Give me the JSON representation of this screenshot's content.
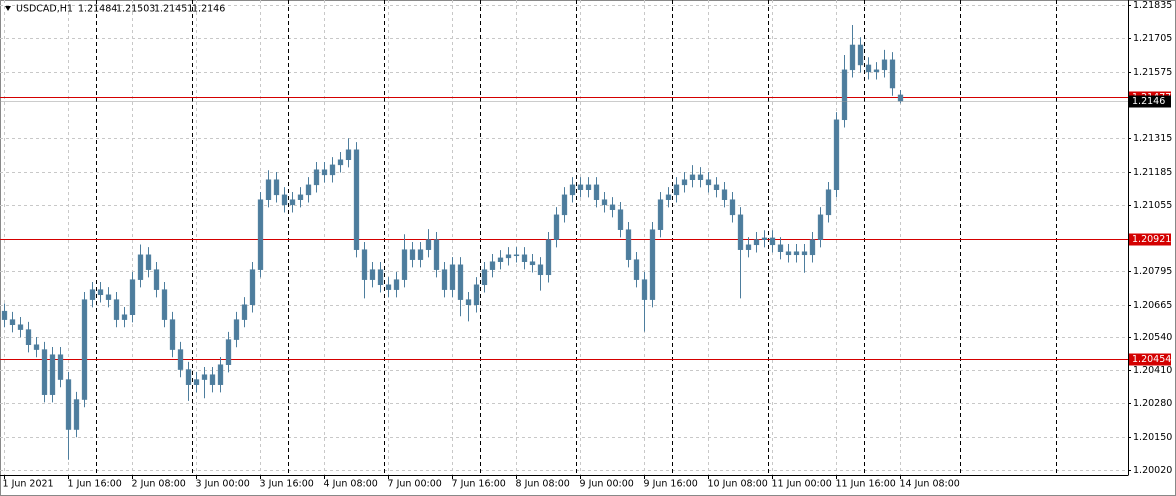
{
  "chart_data": {
    "type": "candlestick",
    "symbol": "USDCAD,H1",
    "quote": {
      "open": 1.21484,
      "high": 1.21503,
      "low": 1.21451,
      "close": 1.2146
    },
    "color": "#4d7d9d",
    "grid": true,
    "level_color": "#d40000",
    "levels": [
      1.21477,
      1.20921,
      1.20454
    ],
    "xlim": [
      -0.5,
      140.5
    ],
    "xticks": [
      {
        "value": 0,
        "label": "1 Jun 2021"
      },
      {
        "value": 8,
        "label": "1 Jun 16:00"
      },
      {
        "value": 16,
        "label": "2 Jun 08:00"
      },
      {
        "value": 24,
        "label": "3 Jun 00:00"
      },
      {
        "value": 32,
        "label": "3 Jun 16:00"
      },
      {
        "value": 40,
        "label": "4 Jun 08:00"
      },
      {
        "value": 48,
        "label": "7 Jun 00:00"
      },
      {
        "value": 56,
        "label": "7 Jun 16:00"
      },
      {
        "value": 64,
        "label": "8 Jun 08:00"
      },
      {
        "value": 72,
        "label": "9 Jun 00:00"
      },
      {
        "value": 80,
        "label": "9 Jun 16:00"
      },
      {
        "value": 88,
        "label": "10 Jun 08:00"
      },
      {
        "value": 96,
        "label": "11 Jun 00:00"
      },
      {
        "value": 104,
        "label": "11 Jun 16:00"
      },
      {
        "value": 112,
        "label": "14 Jun 08:00"
      }
    ],
    "ylim": [
      1.2002,
      1.21835
    ],
    "yticks": [
      1.21835,
      1.21705,
      1.21575,
      1.21315,
      1.21185,
      1.21055,
      1.20795,
      1.20665,
      {
        "value": 1.2054,
        "label": "1.20540"
      },
      {
        "value": 1.2041,
        "label": "1.20410"
      },
      {
        "value": 1.2028,
        "label": "1.20280"
      },
      {
        "value": 1.2015,
        "label": "1.20150"
      },
      {
        "value": 1.2002,
        "label": "1.20020"
      }
    ],
    "open": [
      1.2064,
      1.20607,
      1.20587,
      1.20568,
      1.20509,
      1.2049,
      1.20314,
      1.2047,
      1.20373,
      1.20178,
      1.20295,
      1.20685,
      1.20724,
      1.20704,
      1.20685,
      1.20607,
      1.20626,
      1.20763,
      1.2086,
      1.20802,
      1.20724,
      1.20607,
      1.2049,
      1.20412,
      1.20353,
      1.20373,
      1.20392,
      1.20353,
      1.20431,
      1.20529,
      1.20607,
      1.20665,
      1.20802,
      1.21075,
      1.21153,
      1.21094,
      1.21055,
      1.21075,
      1.21094,
      1.21133,
      1.21192,
      1.21172,
      1.21211,
      1.21231,
      1.2127,
      1.2088,
      1.20763,
      1.20802,
      1.20743,
      1.20724,
      1.20763,
      1.2088,
      1.20841,
      1.2088,
      1.20919,
      1.20802,
      1.20724,
      1.20821,
      1.20685,
      1.20665,
      1.20743,
      1.20802,
      1.20833,
      1.20848,
      1.2086,
      1.2086,
      1.20833,
      1.20821,
      1.20782,
      1.20919,
      1.21016,
      1.21094,
      1.21133,
      1.21114,
      1.21133,
      1.21075,
      1.21055,
      1.21036,
      1.20958,
      1.20841,
      1.20763,
      1.20685,
      1.20958,
      1.21075,
      1.21094,
      1.21133,
      1.21153,
      1.21172,
      1.21153,
      1.21133,
      1.21114,
      1.21075,
      1.21016,
      1.2088,
      1.20899,
      1.20919,
      1.20926,
      1.20899,
      1.20872,
      1.2086,
      1.20872,
      1.2086,
      1.20919,
      1.21016,
      1.21114,
      1.21387,
      1.21582,
      1.21679,
      1.21601,
      1.21574,
      1.21582,
      1.21621,
      1.21484
    ],
    "high": [
      1.2067,
      1.20637,
      1.20617,
      1.20598,
      1.20539,
      1.2052,
      1.205,
      1.205,
      1.20403,
      1.20325,
      1.20715,
      1.20754,
      1.20754,
      1.20734,
      1.20715,
      1.20656,
      1.20793,
      1.209,
      1.2089,
      1.20832,
      1.20754,
      1.20637,
      1.2052,
      1.20442,
      1.20403,
      1.20422,
      1.20422,
      1.20461,
      1.20559,
      1.20637,
      1.20695,
      1.20832,
      1.21105,
      1.2119,
      1.21183,
      1.21124,
      1.21105,
      1.21124,
      1.21163,
      1.21222,
      1.21222,
      1.21241,
      1.21261,
      1.21315,
      1.213,
      1.2091,
      1.20832,
      1.20832,
      1.20773,
      1.20793,
      1.2094,
      1.2091,
      1.2091,
      1.2096,
      1.20949,
      1.20832,
      1.20851,
      1.20851,
      1.20715,
      1.20773,
      1.20832,
      1.20863,
      1.20878,
      1.2089,
      1.2089,
      1.2089,
      1.20863,
      1.20851,
      1.20949,
      1.21046,
      1.21124,
      1.21163,
      1.21163,
      1.21163,
      1.21163,
      1.21105,
      1.21085,
      1.21066,
      1.20988,
      1.20871,
      1.20793,
      1.20988,
      1.21105,
      1.21124,
      1.21163,
      1.21183,
      1.2121,
      1.21202,
      1.21183,
      1.21163,
      1.21144,
      1.21105,
      1.21046,
      1.20929,
      1.20949,
      1.20956,
      1.20956,
      1.20929,
      1.20902,
      1.20902,
      1.20902,
      1.20949,
      1.21046,
      1.21144,
      1.21417,
      1.2164,
      1.21757,
      1.21709,
      1.21631,
      1.21612,
      1.2166,
      1.21651,
      1.21503
    ],
    "low": [
      1.20577,
      1.20557,
      1.20538,
      1.20479,
      1.2046,
      1.20284,
      1.20284,
      1.20343,
      1.2006,
      1.20148,
      1.20265,
      1.20655,
      1.20674,
      1.20655,
      1.20577,
      1.20577,
      1.20596,
      1.20733,
      1.20772,
      1.20694,
      1.20577,
      1.2046,
      1.20382,
      1.2029,
      1.20323,
      1.203,
      1.20323,
      1.20323,
      1.20401,
      1.20499,
      1.20577,
      1.20635,
      1.20772,
      1.21045,
      1.21064,
      1.21025,
      1.21025,
      1.21045,
      1.21064,
      1.21103,
      1.21142,
      1.21142,
      1.21181,
      1.21201,
      1.2085,
      1.2069,
      1.20733,
      1.20713,
      1.20694,
      1.20694,
      1.20733,
      1.20811,
      1.20811,
      1.2085,
      1.20772,
      1.20694,
      1.20694,
      1.2062,
      1.206,
      1.20635,
      1.20713,
      1.20772,
      1.20803,
      1.20818,
      1.2083,
      1.20803,
      1.20791,
      1.2072,
      1.20752,
      1.20889,
      1.20986,
      1.21064,
      1.21084,
      1.21084,
      1.21045,
      1.21025,
      1.21006,
      1.20928,
      1.20811,
      1.20733,
      1.2056,
      1.20655,
      1.20928,
      1.21045,
      1.21064,
      1.21103,
      1.21123,
      1.21123,
      1.21103,
      1.21084,
      1.21045,
      1.20986,
      1.2069,
      1.2085,
      1.20869,
      1.20889,
      1.20869,
      1.20842,
      1.2083,
      1.2083,
      1.2079,
      1.2083,
      1.20889,
      1.20986,
      1.21084,
      1.21357,
      1.21552,
      1.21571,
      1.21544,
      1.21544,
      1.21552,
      1.21481,
      1.21451
    ],
    "close": [
      1.20607,
      1.20587,
      1.20568,
      1.20509,
      1.2049,
      1.20314,
      1.2047,
      1.20373,
      1.20178,
      1.20295,
      1.20685,
      1.20724,
      1.20704,
      1.20685,
      1.20607,
      1.20626,
      1.20763,
      1.2086,
      1.20802,
      1.20724,
      1.20607,
      1.2049,
      1.20412,
      1.20353,
      1.20373,
      1.20392,
      1.20353,
      1.20431,
      1.20529,
      1.20607,
      1.20665,
      1.20802,
      1.21075,
      1.21153,
      1.21094,
      1.21055,
      1.21075,
      1.21094,
      1.21133,
      1.21192,
      1.21172,
      1.21211,
      1.21231,
      1.2127,
      1.2088,
      1.20763,
      1.20802,
      1.20743,
      1.20724,
      1.20763,
      1.2088,
      1.20841,
      1.2088,
      1.20919,
      1.20802,
      1.20724,
      1.20821,
      1.20685,
      1.20665,
      1.20743,
      1.20802,
      1.20833,
      1.20848,
      1.2086,
      1.2086,
      1.20833,
      1.20821,
      1.20782,
      1.20919,
      1.21016,
      1.21094,
      1.21133,
      1.21114,
      1.21133,
      1.21075,
      1.21055,
      1.21036,
      1.20958,
      1.20841,
      1.20763,
      1.20685,
      1.20958,
      1.21075,
      1.21094,
      1.21133,
      1.21153,
      1.21172,
      1.21153,
      1.21133,
      1.21114,
      1.21075,
      1.21016,
      1.2088,
      1.20899,
      1.20919,
      1.20926,
      1.20899,
      1.20872,
      1.2086,
      1.20872,
      1.2086,
      1.20919,
      1.21016,
      1.21114,
      1.21387,
      1.21582,
      1.21679,
      1.21601,
      1.21574,
      1.21582,
      1.21621,
      1.21511,
      1.2146
    ]
  }
}
